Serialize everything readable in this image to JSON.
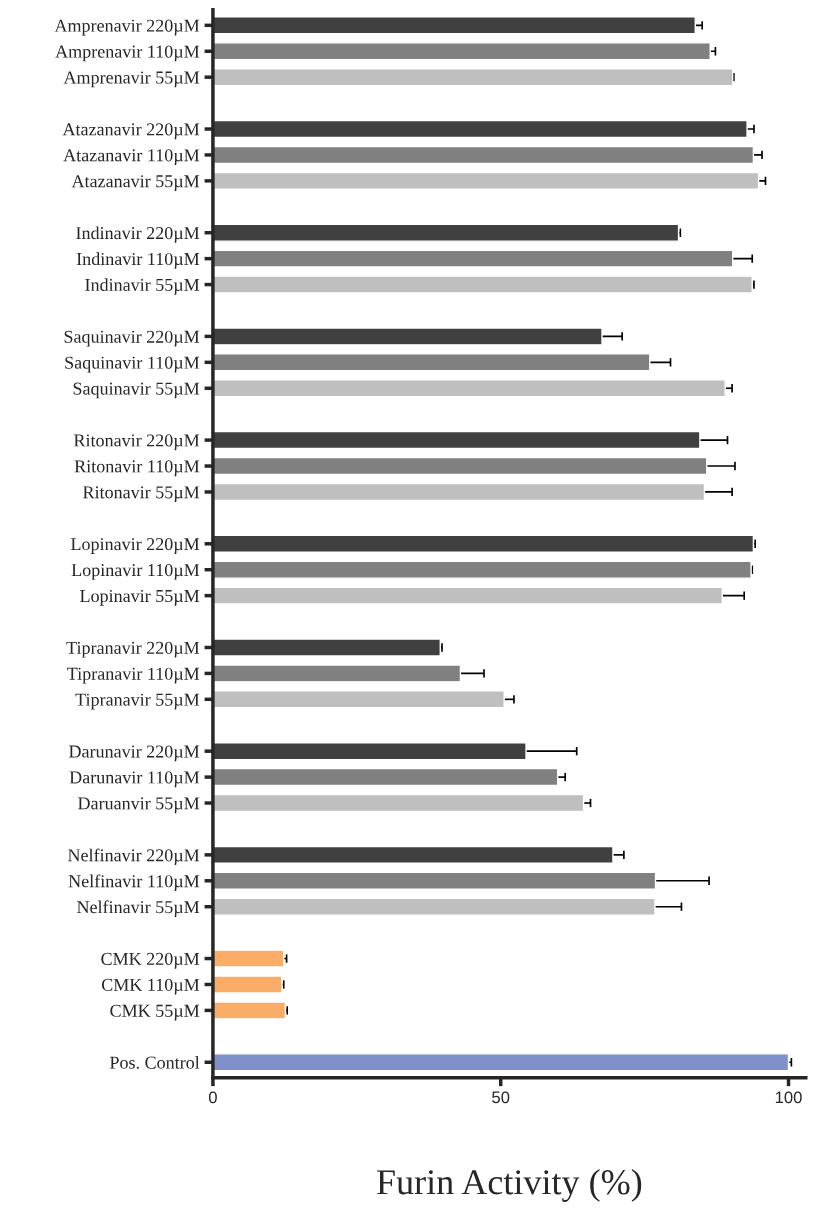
{
  "chart_data": {
    "type": "bar",
    "orientation": "horizontal",
    "xlabel": "Furin Activity (%)",
    "categories": [
      "Amprenavir 220µM",
      "Amprenavir 110µM",
      "Amprenavir 55µM",
      null,
      "Atazanavir 220µM",
      "Atazanavir 110µM",
      "Atazanavir 55µM",
      null,
      "Indinavir 220µM",
      "Indinavir 110µM",
      "Indinavir 55µM",
      null,
      "Saquinavir 220µM",
      "Saquinavir 110µM",
      "Saquinavir 55µM",
      null,
      "Ritonavir 220µM",
      "Ritonavir 110µM",
      "Ritonavir 55µM",
      null,
      "Lopinavir 220µM",
      "Lopinavir 110µM",
      "Lopinavir 55µM",
      null,
      "Tipranavir 220µM",
      "Tipranavir 110µM",
      "Tipranavir 55µM",
      null,
      "Darunavir 220µM",
      "Darunavir 110µM",
      "Daruanvir 55µM",
      null,
      "Nelfinavir 220µM",
      "Nelfinavir 110µM",
      "Nelfinavir 55µM",
      null,
      "CMK 220µM",
      "CMK 110µM",
      "CMK 55µM",
      null,
      "Pos. Control"
    ],
    "values": [
      83.8,
      86.4,
      90.3,
      null,
      92.8,
      93.9,
      94.8,
      null,
      80.9,
      90.3,
      93.7,
      null,
      67.6,
      75.9,
      89.0,
      null,
      84.6,
      85.8,
      85.4,
      null,
      93.9,
      93.5,
      88.5,
      null,
      39.5,
      43.0,
      50.6,
      null,
      54.4,
      59.9,
      64.4,
      null,
      69.5,
      76.9,
      76.8,
      null,
      12.3,
      12.0,
      12.6,
      null,
      100
    ],
    "errors": [
      1.2,
      0.9,
      0.2,
      null,
      1.2,
      1.5,
      1.2,
      null,
      0.3,
      3.4,
      0.3,
      null,
      3.5,
      3.6,
      1.2,
      null,
      4.8,
      4.9,
      4.8,
      null,
      0.3,
      0.2,
      3.8,
      null,
      0.3,
      4.1,
      1.7,
      null,
      8.8,
      1.3,
      1.2,
      null,
      1.9,
      9.3,
      4.6,
      null,
      0.5,
      0.3,
      0.3,
      null,
      0.5
    ],
    "colors": [
      "#404040",
      "#808080",
      "#bfbfbf",
      null,
      "#404040",
      "#808080",
      "#bfbfbf",
      null,
      "#404040",
      "#808080",
      "#bfbfbf",
      null,
      "#404040",
      "#808080",
      "#bfbfbf",
      null,
      "#404040",
      "#808080",
      "#bfbfbf",
      null,
      "#404040",
      "#808080",
      "#bfbfbf",
      null,
      "#404040",
      "#808080",
      "#bfbfbf",
      null,
      "#404040",
      "#808080",
      "#bfbfbf",
      null,
      "#404040",
      "#808080",
      "#bfbfbf",
      null,
      "#fbad67",
      "#fbad67",
      "#fbad67",
      null,
      "#8190cb"
    ],
    "xlim": [
      0,
      103
    ],
    "xticks": [
      0,
      50,
      100
    ],
    "grid": false,
    "legend": false
  }
}
